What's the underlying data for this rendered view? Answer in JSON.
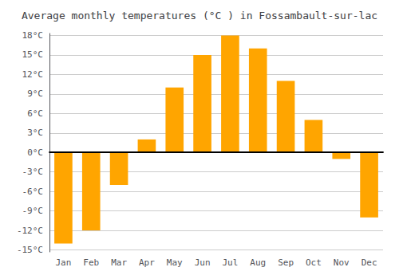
{
  "chart_data": {
    "type": "bar",
    "title": "Average monthly temperatures (°C ) in Fossambault-sur-lac",
    "categories": [
      "Jan",
      "Feb",
      "Mar",
      "Apr",
      "May",
      "Jun",
      "Jul",
      "Aug",
      "Sep",
      "Oct",
      "Nov",
      "Dec"
    ],
    "values": [
      -14,
      -12,
      -5,
      2,
      10,
      15,
      18,
      16,
      11,
      5,
      -1,
      -10
    ],
    "color": "#FFA500",
    "ylim": [
      -15.3,
      18.3
    ],
    "yticks": [
      {
        "value": -15,
        "label": "-15°C"
      },
      {
        "value": -12,
        "label": "-12°C"
      },
      {
        "value": -9,
        "label": "-9°C"
      },
      {
        "value": -6,
        "label": "-6°C"
      },
      {
        "value": -3,
        "label": "-3°C"
      },
      {
        "value": 0,
        "label": "0°C"
      },
      {
        "value": 3,
        "label": "3°C"
      },
      {
        "value": 6,
        "label": "6°C"
      },
      {
        "value": 9,
        "label": "9°C"
      },
      {
        "value": 12,
        "label": "12°C"
      },
      {
        "value": 15,
        "label": "15°C"
      },
      {
        "value": 18,
        "label": "18°C"
      }
    ],
    "grid": true
  }
}
